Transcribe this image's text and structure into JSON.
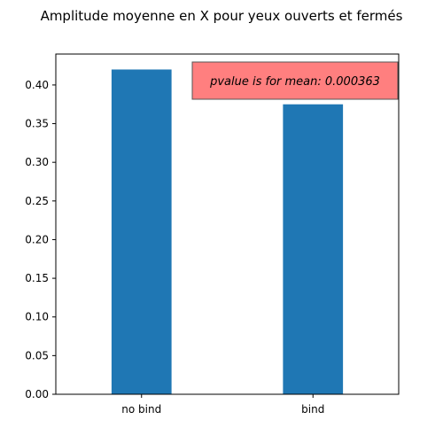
{
  "chart_data": {
    "type": "bar",
    "title": "Amplitude moyenne en X pour yeux ouverts et fermés",
    "xlabel": "",
    "ylabel": "",
    "categories": [
      "no bind",
      "bind"
    ],
    "values": [
      0.42,
      0.375
    ],
    "ylim": [
      0,
      0.44
    ],
    "yticks": [
      0.0,
      0.05,
      0.1,
      0.15,
      0.2,
      0.25,
      0.3,
      0.35,
      0.4
    ],
    "ytick_labels": [
      "0.00",
      "0.05",
      "0.10",
      "0.15",
      "0.20",
      "0.25",
      "0.30",
      "0.35",
      "0.40"
    ],
    "bar_color": "#1f77b4",
    "grid": false,
    "legend": false,
    "annotation": {
      "text": "pvalue is for mean: 0.000363",
      "box_color": "#ff7f7f",
      "placement": "top-right"
    }
  }
}
